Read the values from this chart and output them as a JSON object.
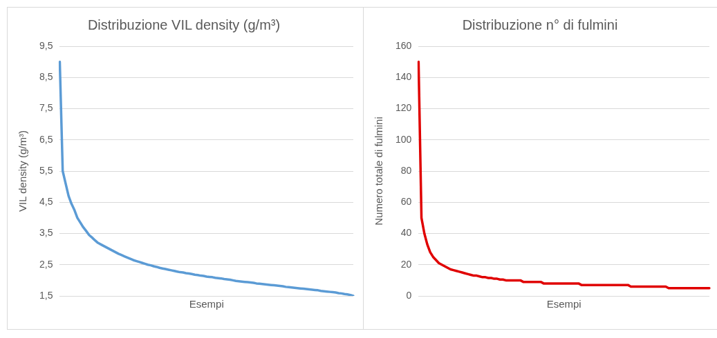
{
  "chart_data": [
    {
      "type": "line",
      "title": "Distribuzione VIL density (g/m³)",
      "xlabel": "Esempi",
      "ylabel": "VIL density (g/m³)",
      "categories": [
        null,
        null,
        null,
        null,
        null,
        null,
        null,
        null,
        null,
        null,
        null,
        null,
        null,
        null,
        null,
        null,
        null,
        null,
        null,
        null,
        null,
        null,
        null,
        null,
        null,
        null,
        null,
        null,
        null,
        null,
        null,
        null,
        null,
        null,
        null,
        null,
        null,
        null,
        null,
        null,
        null,
        null,
        null,
        null,
        null,
        null,
        null,
        null,
        null,
        null,
        null,
        null,
        null,
        null,
        null,
        null,
        null,
        null,
        null,
        null,
        null,
        null,
        null,
        null,
        null,
        null,
        null,
        null,
        null,
        null,
        null,
        null,
        null,
        null,
        null,
        null,
        null,
        null,
        null,
        null,
        null,
        null,
        null,
        null,
        null,
        null,
        null,
        null,
        null,
        null,
        null,
        null,
        null,
        null,
        null,
        null,
        null,
        null,
        null,
        null,
        null
      ],
      "series": [
        {
          "color": "#5b9bd5",
          "values": [
            9.0,
            5.5,
            5.1,
            4.7,
            4.45,
            4.25,
            4.0,
            3.85,
            3.7,
            3.58,
            3.45,
            3.37,
            3.28,
            3.2,
            3.15,
            3.1,
            3.05,
            3.0,
            2.95,
            2.9,
            2.85,
            2.81,
            2.77,
            2.73,
            2.69,
            2.65,
            2.62,
            2.59,
            2.56,
            2.53,
            2.5,
            2.48,
            2.45,
            2.43,
            2.4,
            2.38,
            2.36,
            2.34,
            2.32,
            2.3,
            2.28,
            2.26,
            2.25,
            2.23,
            2.22,
            2.2,
            2.18,
            2.17,
            2.15,
            2.14,
            2.12,
            2.11,
            2.1,
            2.08,
            2.07,
            2.06,
            2.04,
            2.03,
            2.02,
            2.0,
            1.98,
            1.97,
            1.96,
            1.95,
            1.94,
            1.93,
            1.92,
            1.9,
            1.89,
            1.88,
            1.87,
            1.86,
            1.85,
            1.84,
            1.83,
            1.82,
            1.81,
            1.79,
            1.78,
            1.77,
            1.76,
            1.75,
            1.74,
            1.73,
            1.72,
            1.71,
            1.7,
            1.69,
            1.68,
            1.66,
            1.65,
            1.64,
            1.63,
            1.62,
            1.61,
            1.59,
            1.58,
            1.56,
            1.55,
            1.53,
            1.5
          ]
        }
      ],
      "ylim": [
        1.5,
        9.5
      ],
      "yticks": [
        {
          "value": 1.5,
          "label": "1,5"
        },
        {
          "value": 2.5,
          "label": "2,5"
        },
        {
          "value": 3.5,
          "label": "3,5"
        },
        {
          "value": 4.5,
          "label": "4,5"
        },
        {
          "value": 5.5,
          "label": "5,5"
        },
        {
          "value": 6.5,
          "label": "6,5"
        },
        {
          "value": 7.5,
          "label": "7,5"
        },
        {
          "value": 8.5,
          "label": "8,5"
        },
        {
          "value": 9.5,
          "label": "9,5"
        }
      ],
      "grid": "y",
      "tick_labels": "y"
    },
    {
      "type": "line",
      "title": "Distribuzione n° di fulmini",
      "xlabel": "Esempi",
      "ylabel": "Numero totale di fulmini",
      "categories": [
        null,
        null,
        null,
        null,
        null,
        null,
        null,
        null,
        null,
        null,
        null,
        null,
        null,
        null,
        null,
        null,
        null,
        null,
        null,
        null,
        null,
        null,
        null,
        null,
        null,
        null,
        null,
        null,
        null,
        null,
        null,
        null,
        null,
        null,
        null,
        null,
        null,
        null,
        null,
        null,
        null,
        null,
        null,
        null,
        null,
        null,
        null,
        null,
        null,
        null,
        null,
        null,
        null,
        null,
        null,
        null,
        null,
        null,
        null,
        null,
        null,
        null,
        null,
        null,
        null,
        null,
        null,
        null,
        null,
        null,
        null,
        null,
        null,
        null,
        null,
        null,
        null,
        null,
        null,
        null,
        null,
        null,
        null,
        null,
        null,
        null,
        null,
        null,
        null,
        null,
        null,
        null,
        null,
        null,
        null,
        null,
        null,
        null,
        null,
        null,
        null
      ],
      "series": [
        {
          "color": "#e00000",
          "values": [
            150,
            50,
            40,
            33,
            28,
            25,
            23,
            21,
            20,
            19,
            18,
            17,
            16.5,
            16,
            15.5,
            15,
            14.5,
            14,
            13.5,
            13,
            13,
            12.5,
            12,
            12,
            11.5,
            11.5,
            11,
            11,
            10.5,
            10.5,
            10,
            10,
            10,
            10,
            10,
            10,
            9,
            9,
            9,
            9,
            9,
            9,
            9,
            8,
            8,
            8,
            8,
            8,
            8,
            8,
            8,
            8,
            8,
            8,
            8,
            8,
            7,
            7,
            7,
            7,
            7,
            7,
            7,
            7,
            7,
            7,
            7,
            7,
            7,
            7,
            7,
            7,
            7,
            6,
            6,
            6,
            6,
            6,
            6,
            6,
            6,
            6,
            6,
            6,
            6,
            6,
            5,
            5,
            5,
            5,
            5,
            5,
            5,
            5,
            5,
            5,
            5,
            5,
            5,
            5,
            5
          ]
        }
      ],
      "ylim": [
        0,
        160
      ],
      "yticks": [
        0,
        20,
        40,
        60,
        80,
        100,
        120,
        140,
        160
      ],
      "grid": "y",
      "tick_labels": "y"
    }
  ]
}
